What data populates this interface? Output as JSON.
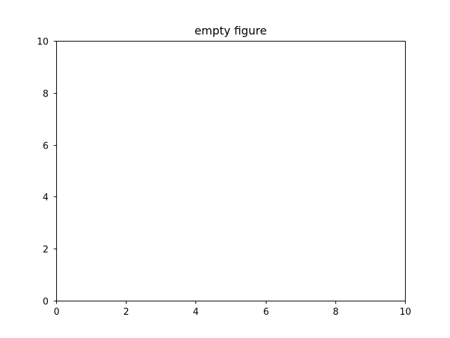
{
  "chart_data": {
    "type": "line",
    "title": "empty figure",
    "xlabel": "",
    "ylabel": "",
    "xlim": [
      0,
      10
    ],
    "ylim": [
      0,
      10
    ],
    "x_ticks": [
      0,
      2,
      4,
      6,
      8,
      10
    ],
    "y_ticks": [
      0,
      2,
      4,
      6,
      8,
      10
    ],
    "series": [],
    "grid": false,
    "legend": "none"
  },
  "colors": {
    "axes": "#000000",
    "background": "#ffffff"
  }
}
